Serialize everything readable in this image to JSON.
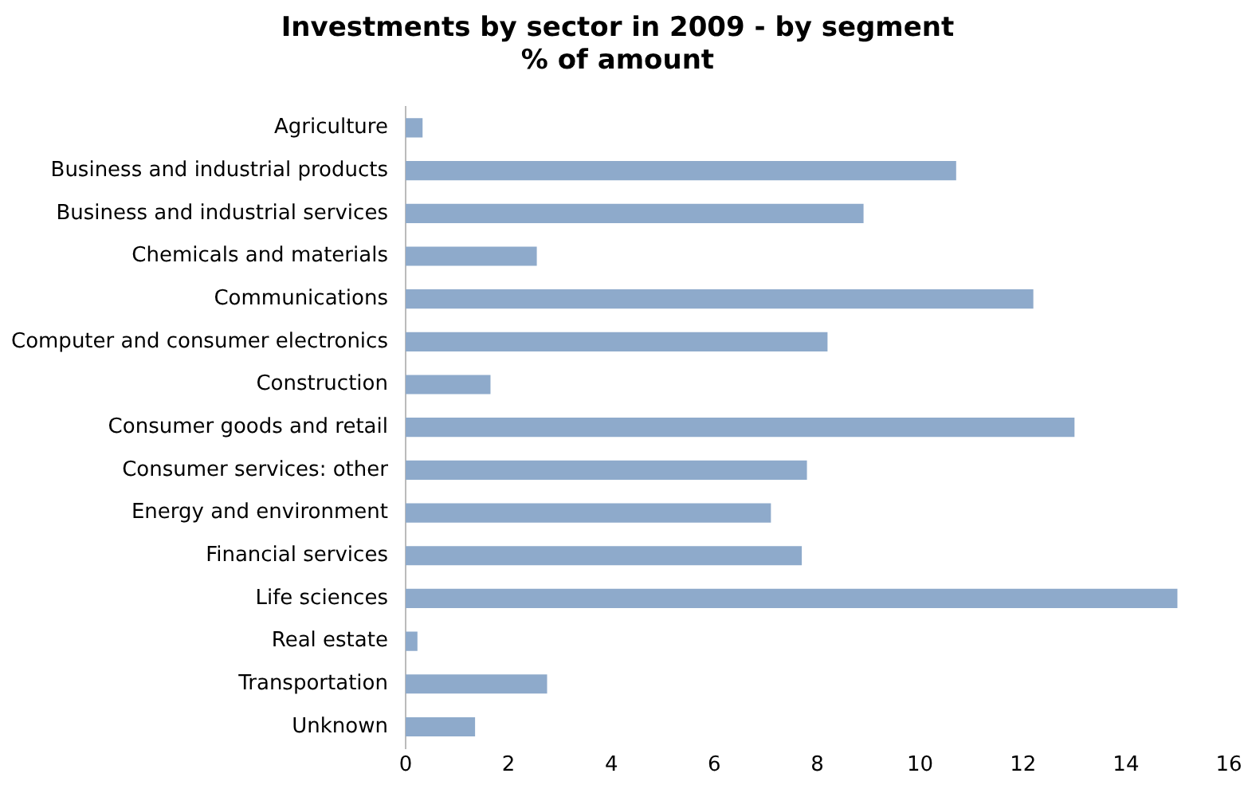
{
  "chart_data": {
    "type": "bar",
    "orientation": "horizontal",
    "title": "Investments by sector in 2009 - by segment\n% of amount",
    "categories": [
      "Agriculture",
      "Business and industrial products",
      "Business and industrial services",
      "Chemicals and materials",
      "Communications",
      "Computer and consumer electronics",
      "Construction",
      "Consumer goods and retail",
      "Consumer services: other",
      "Energy and environment",
      "Financial services",
      "Life sciences",
      "Real estate",
      "Transportation",
      "Unknown"
    ],
    "values": [
      0.33,
      10.7,
      8.9,
      2.55,
      12.2,
      8.2,
      1.65,
      13.0,
      7.8,
      7.1,
      7.7,
      15.0,
      0.23,
      2.75,
      1.35
    ],
    "color": "#8eaacb",
    "xlim": [
      0,
      16
    ],
    "xticks": [
      0,
      2,
      4,
      6,
      8,
      10,
      12,
      14,
      16
    ],
    "grid": false,
    "legend": false
  }
}
